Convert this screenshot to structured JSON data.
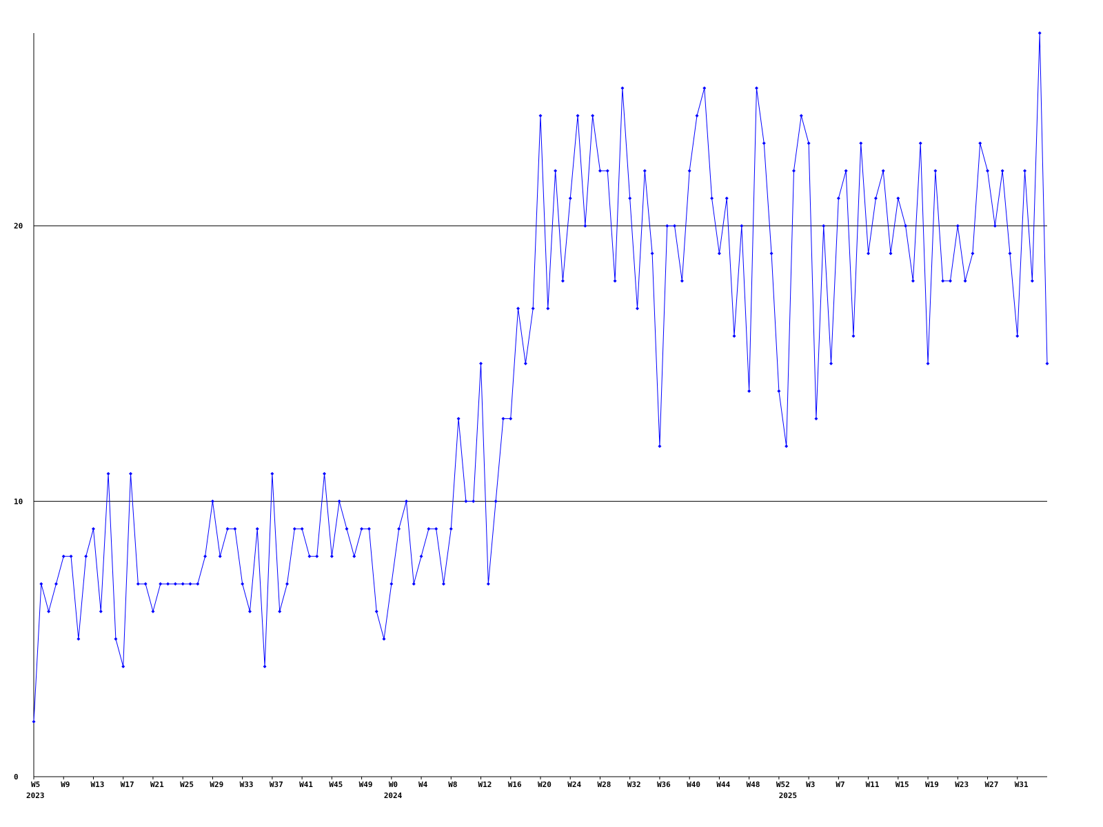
{
  "chart_data": {
    "type": "line",
    "color": "#0000ff",
    "grid": true,
    "categories": [
      "W5",
      null,
      null,
      null,
      "W9",
      null,
      null,
      null,
      "W13",
      null,
      null,
      null,
      "W17",
      null,
      null,
      null,
      "W21",
      null,
      null,
      null,
      "W25",
      null,
      null,
      null,
      "W29",
      null,
      null,
      null,
      "W33",
      null,
      null,
      null,
      "W37",
      null,
      null,
      null,
      "W41",
      null,
      null,
      null,
      "W45",
      null,
      null,
      null,
      "W49",
      null,
      null,
      null,
      "W0",
      null,
      null,
      null,
      "W4",
      null,
      null,
      null,
      "W8",
      null,
      null,
      null,
      "W12",
      null,
      null,
      null,
      "W16",
      null,
      null,
      null,
      "W20",
      null,
      null,
      null,
      "W24",
      null,
      null,
      null,
      "W28",
      null,
      null,
      null,
      "W32",
      null,
      null,
      null,
      "W36",
      null,
      null,
      null,
      "W40",
      null,
      null,
      null,
      "W44",
      null,
      null,
      null,
      "W48",
      null,
      null,
      null,
      "W52",
      null,
      null,
      null,
      "W3",
      null,
      null,
      null,
      "W7",
      null,
      null,
      null,
      "W11",
      null,
      null,
      null,
      "W15",
      null,
      null,
      null,
      "W19",
      null,
      null,
      null,
      "W23",
      null,
      null,
      null,
      "W27",
      null,
      null,
      null,
      "W31",
      null,
      null,
      null,
      null
    ],
    "category_years": [
      "2023",
      null,
      null,
      null,
      null,
      null,
      null,
      null,
      null,
      null,
      null,
      null,
      null,
      null,
      null,
      null,
      null,
      null,
      null,
      null,
      null,
      null,
      null,
      null,
      null,
      null,
      null,
      null,
      null,
      null,
      null,
      null,
      null,
      null,
      null,
      null,
      null,
      null,
      null,
      null,
      null,
      null,
      null,
      null,
      null,
      null,
      null,
      null,
      "2024",
      null,
      null,
      null,
      null,
      null,
      null,
      null,
      null,
      null,
      null,
      null,
      null,
      null,
      null,
      null,
      null,
      null,
      null,
      null,
      null,
      null,
      null,
      null,
      null,
      null,
      null,
      null,
      null,
      null,
      null,
      null,
      null,
      null,
      null,
      null,
      null,
      null,
      null,
      null,
      null,
      null,
      null,
      null,
      null,
      null,
      null,
      null,
      null,
      null,
      null,
      null,
      null,
      "2025",
      null,
      null,
      null,
      null,
      null,
      null,
      null,
      null,
      null,
      null,
      null,
      null,
      null,
      null,
      null,
      null,
      null,
      null,
      null,
      null,
      null,
      null,
      null,
      null,
      null,
      null,
      null,
      null,
      null,
      null,
      null,
      null,
      null,
      null,
      null
    ],
    "values": [
      2,
      7,
      6,
      7,
      8,
      8,
      5,
      8,
      9,
      6,
      11,
      5,
      4,
      11,
      7,
      7,
      6,
      7,
      7,
      7,
      7,
      7,
      7,
      8,
      10,
      8,
      9,
      9,
      7,
      6,
      9,
      4,
      11,
      6,
      7,
      9,
      9,
      8,
      8,
      11,
      8,
      10,
      9,
      8,
      9,
      9,
      6,
      5,
      7,
      9,
      10,
      7,
      8,
      9,
      9,
      7,
      9,
      13,
      10,
      10,
      15,
      7,
      10,
      13,
      13,
      17,
      15,
      17,
      24,
      17,
      22,
      18,
      21,
      24,
      20,
      24,
      22,
      22,
      18,
      25,
      21,
      17,
      22,
      19,
      12,
      20,
      20,
      18,
      22,
      24,
      25,
      21,
      19,
      21,
      16,
      20,
      14,
      25,
      23,
      19,
      14,
      12,
      22,
      24,
      23,
      13,
      20,
      15,
      21,
      22,
      16,
      23,
      19,
      21,
      22,
      19,
      21,
      20,
      18,
      23,
      15,
      22,
      18,
      18,
      20,
      18,
      19,
      23,
      22,
      20,
      22,
      19,
      16,
      22,
      18,
      27,
      15
    ],
    "ylim": [
      0,
      27
    ],
    "yticks": [
      0,
      10,
      20
    ]
  }
}
